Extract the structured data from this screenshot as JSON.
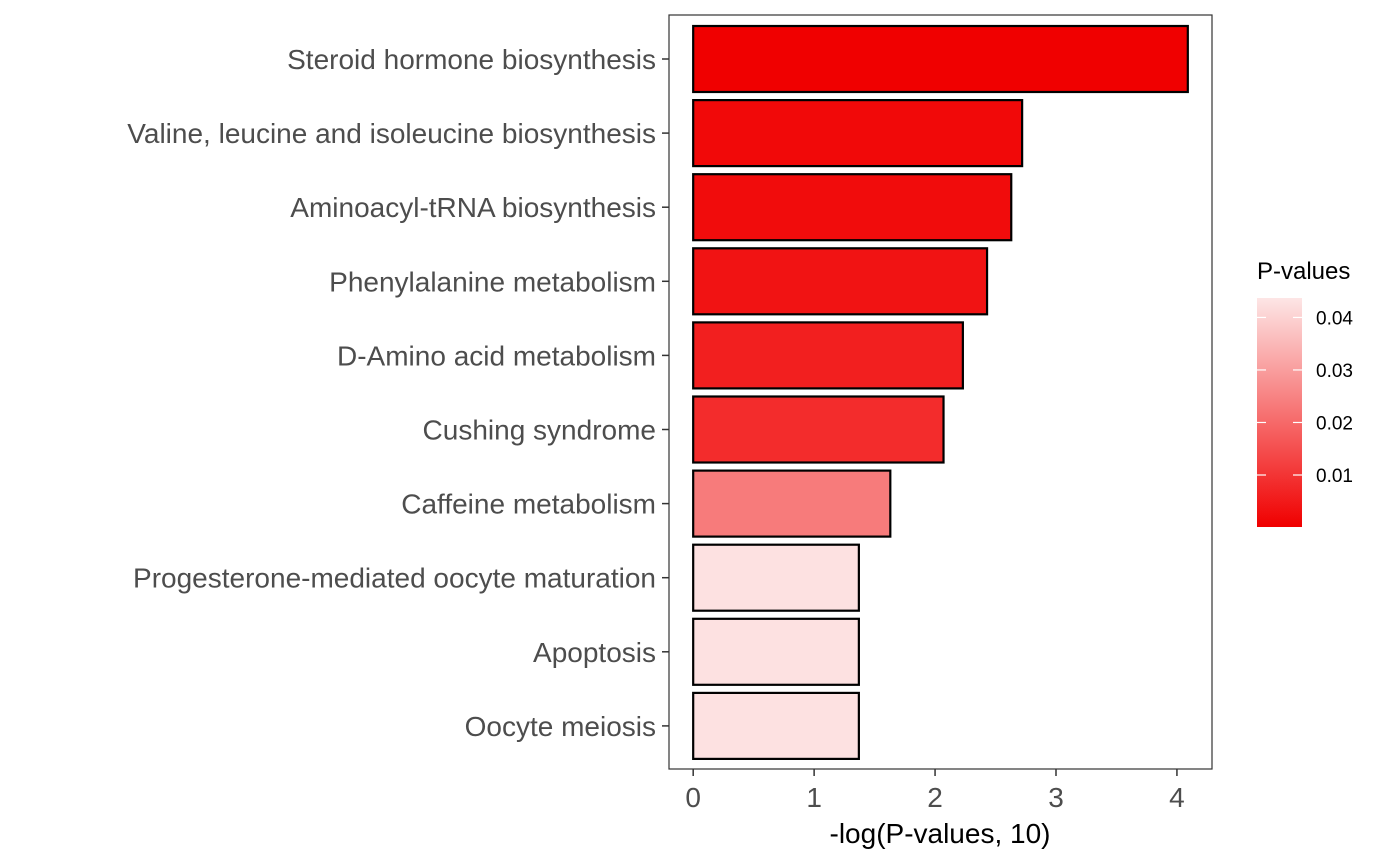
{
  "chart_data": {
    "type": "bar",
    "orientation": "horizontal",
    "categories": [
      "Steroid hormone biosynthesis",
      "Valine, leucine and isoleucine biosynthesis",
      "Aminoacyl-tRNA biosynthesis",
      "Phenylalanine metabolism",
      "D-Amino acid metabolism",
      "Cushing syndrome",
      "Caffeine metabolism",
      "Progesterone-mediated oocyte maturation",
      "Apoptosis",
      "Oocyte meiosis"
    ],
    "values": [
      4.09,
      2.72,
      2.63,
      2.43,
      2.23,
      2.07,
      1.63,
      1.37,
      1.37,
      1.37
    ],
    "pvalues": [
      0.0001,
      0.0019,
      0.0023,
      0.0037,
      0.0059,
      0.0085,
      0.0234,
      0.0427,
      0.0427,
      0.0427
    ],
    "xlabel": "-log(P-values, 10)",
    "ylabel": "",
    "xlim": [
      -0.2,
      4.29
    ],
    "xticks": [
      "0",
      "1",
      "2",
      "3",
      "4"
    ],
    "grid": false,
    "legend": {
      "title": "P-values",
      "placement": "right",
      "ticks": [
        "0.04",
        "0.03",
        "0.02",
        "0.01"
      ],
      "tick_values": [
        0.04,
        0.03,
        0.02,
        0.01
      ],
      "range": [
        0.0001,
        0.0437
      ],
      "color_low": "#f00000",
      "color_high": "#fde6e6"
    }
  }
}
